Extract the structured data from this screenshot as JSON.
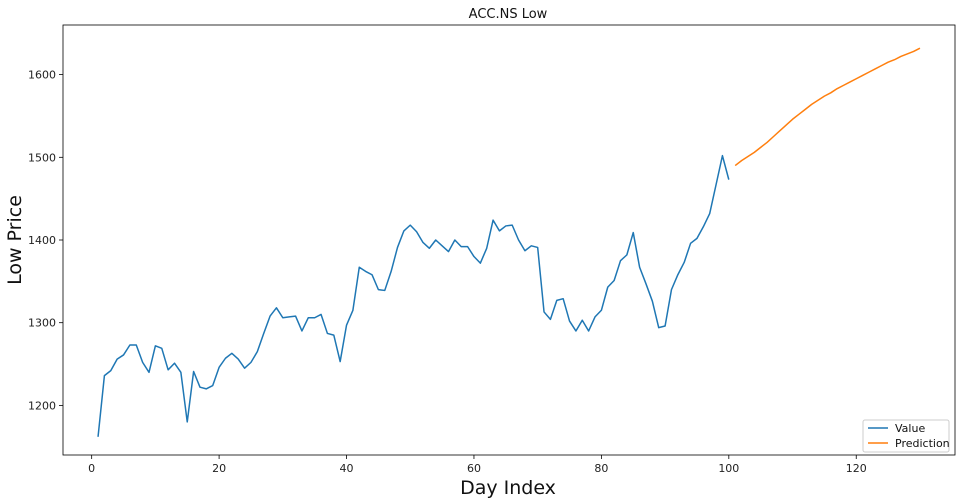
{
  "chart_data": {
    "type": "line",
    "title": "ACC.NS Low",
    "xlabel": "Day Index",
    "ylabel": "Low Price",
    "xlim": [
      -4.5,
      135.5
    ],
    "ylim": [
      1140,
      1660
    ],
    "xticks": [
      0,
      20,
      40,
      60,
      80,
      100,
      120
    ],
    "yticks": [
      1200,
      1300,
      1400,
      1500,
      1600
    ],
    "grid": false,
    "legend_position": "lower-right",
    "series": [
      {
        "name": "Value",
        "color": "#1f77b4",
        "x": [
          1,
          2,
          3,
          4,
          5,
          6,
          7,
          8,
          9,
          10,
          11,
          12,
          13,
          14,
          15,
          16,
          17,
          18,
          19,
          20,
          21,
          22,
          23,
          24,
          25,
          26,
          27,
          28,
          29,
          30,
          31,
          32,
          33,
          34,
          35,
          36,
          37,
          38,
          39,
          40,
          41,
          42,
          43,
          44,
          45,
          46,
          47,
          48,
          49,
          50,
          51,
          52,
          53,
          54,
          55,
          56,
          57,
          58,
          59,
          60,
          61,
          62,
          63,
          64,
          65,
          66,
          67,
          68,
          69,
          70,
          71,
          72,
          73,
          74,
          75,
          76,
          77,
          78,
          79,
          80,
          81,
          82,
          83,
          84,
          85,
          86,
          87,
          88,
          89,
          90,
          91,
          92,
          93,
          94,
          95,
          96,
          97,
          98,
          99,
          100
        ],
        "y": [
          1162,
          1236,
          1242,
          1256,
          1261,
          1273,
          1273,
          1252,
          1240,
          1272,
          1269,
          1243,
          1251,
          1240,
          1180,
          1241,
          1222,
          1220,
          1224,
          1246,
          1257,
          1263,
          1256,
          1245,
          1252,
          1265,
          1287,
          1308,
          1318,
          1306,
          1307,
          1308,
          1290,
          1306,
          1306,
          1310,
          1287,
          1285,
          1253,
          1297,
          1315,
          1367,
          1362,
          1358,
          1340,
          1339,
          1362,
          1391,
          1411,
          1418,
          1410,
          1397,
          1390,
          1400,
          1393,
          1386,
          1400,
          1392,
          1392,
          1380,
          1372,
          1390,
          1424,
          1411,
          1417,
          1418,
          1400,
          1387,
          1393,
          1391,
          1313,
          1304,
          1327,
          1329,
          1302,
          1290,
          1303,
          1290,
          1307,
          1315,
          1343,
          1351,
          1375,
          1382,
          1409,
          1367,
          1347,
          1326,
          1294,
          1296,
          1340,
          1358,
          1373,
          1396,
          1402,
          1416,
          1432,
          1467,
          1502,
          1473
        ]
      },
      {
        "name": "Prediction",
        "color": "#ff7f0e",
        "x": [
          101,
          102,
          103,
          104,
          105,
          106,
          107,
          108,
          109,
          110,
          111,
          112,
          113,
          114,
          115,
          116,
          117,
          118,
          119,
          120,
          121,
          122,
          123,
          124,
          125,
          126,
          127,
          128,
          129,
          130
        ],
        "y": [
          1490,
          1496,
          1501,
          1506,
          1512,
          1518,
          1525,
          1532,
          1539,
          1546,
          1552,
          1558,
          1564,
          1569,
          1574,
          1578,
          1583,
          1587,
          1591,
          1595,
          1599,
          1603,
          1607,
          1611,
          1615,
          1618,
          1622,
          1625,
          1628,
          1632
        ]
      }
    ]
  }
}
